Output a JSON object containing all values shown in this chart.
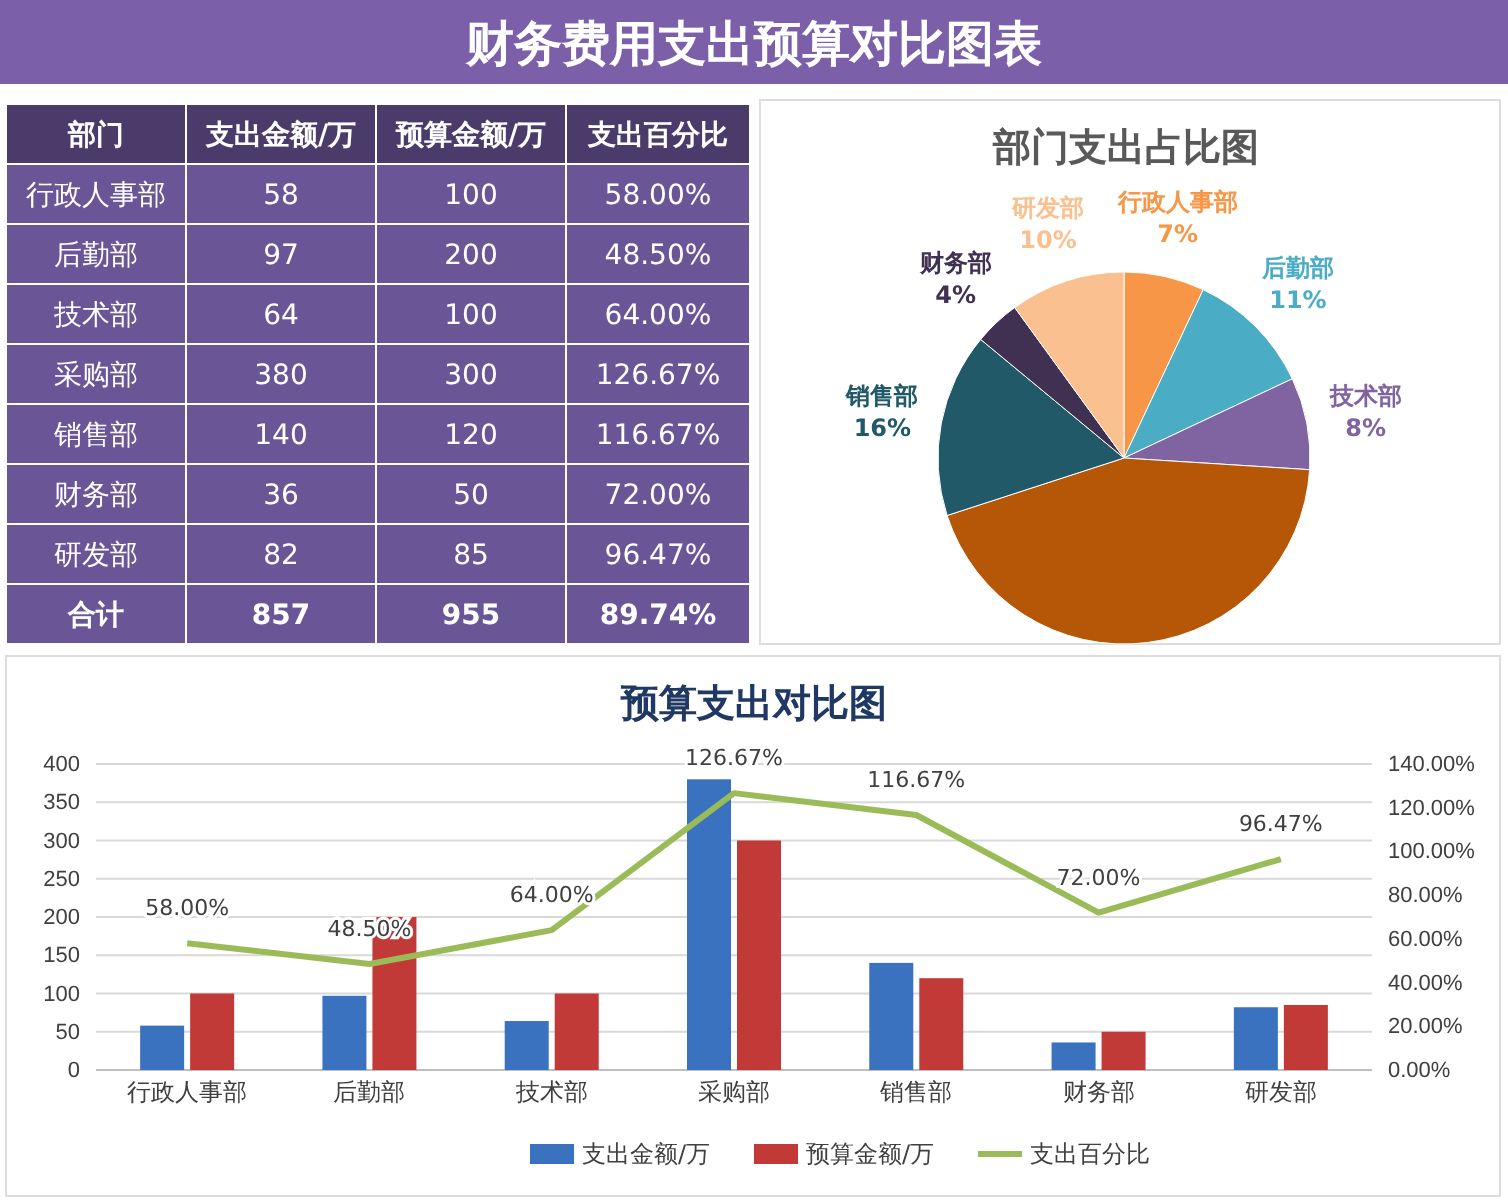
{
  "chart_data": [
    {
      "type": "other",
      "title": "财务费用支出预算对比图表",
      "xlabel": "部门",
      "categories": [
        "行政人事部",
        "后勤部",
        "技术部",
        "采购部",
        "销售部",
        "财务部",
        "研发部",
        "合计"
      ],
      "series": [
        {
          "name": "支出金额/万",
          "color": "#6a5597",
          "values": [
            58,
            97,
            64,
            380,
            140,
            36,
            82,
            857
          ]
        },
        {
          "name": "预算金额/万",
          "color": "#6a5597",
          "values": [
            100,
            200,
            100,
            300,
            120,
            50,
            85,
            955
          ]
        },
        {
          "name": "支出百分比",
          "color": "#6a5597",
          "values": [
            58.0,
            48.5,
            64.0,
            126.67,
            116.67,
            72.0,
            96.47,
            89.74
          ],
          "value_labels": [
            "58.00%",
            "48.50%",
            "64.00%",
            "126.67%",
            "116.67%",
            "72.00%",
            "96.47%",
            "89.74%"
          ]
        }
      ],
      "data_labels": true
    },
    {
      "type": "pie",
      "title": "部门支出占比图",
      "categories": [
        "行政人事部",
        "后勤部",
        "技术部",
        null,
        "销售部",
        "财务部",
        "研发部"
      ],
      "values": [
        7,
        11,
        8,
        44,
        16,
        4,
        10
      ],
      "value_labels": [
        "7%",
        "11%",
        "8%",
        null,
        "16%",
        "4%",
        "10%"
      ],
      "colors": [
        "#f79646",
        "#4bacc6",
        "#8064a2",
        "#b65708",
        "#215968",
        "#403152",
        "#fac08f"
      ]
    },
    {
      "type": "bar",
      "title": "预算支出对比图",
      "categories": [
        "行政人事部",
        "后勤部",
        "技术部",
        "采购部",
        "销售部",
        "财务部",
        "研发部"
      ],
      "series": [
        {
          "name": "支出金额/万",
          "color": "#3a72bf",
          "values": [
            58,
            97,
            64,
            380,
            140,
            36,
            82
          ]
        },
        {
          "name": "预算金额/万",
          "color": "#c23a38",
          "values": [
            100,
            200,
            100,
            300,
            120,
            50,
            85
          ]
        },
        {
          "name": "支出百分比",
          "type": "line",
          "axis": "y2",
          "color": "#9bbb59",
          "values": [
            58.0,
            48.5,
            64.0,
            126.67,
            116.67,
            72.0,
            96.47
          ],
          "value_labels": [
            "58.00%",
            "48.50%",
            "64.00%",
            "126.67%",
            "116.67%",
            "72.00%",
            "96.47%"
          ]
        }
      ],
      "ylim": [
        0,
        400
      ],
      "yticks": [
        0,
        50,
        100,
        150,
        200,
        250,
        300,
        350,
        400
      ],
      "y2lim": [
        0,
        140
      ],
      "y2ticks": [
        {
          "value": 0,
          "label": "0.00%"
        },
        {
          "value": 20,
          "label": "20.00%"
        },
        {
          "value": 40,
          "label": "40.00%"
        },
        {
          "value": 60,
          "label": "60.00%"
        },
        {
          "value": 80,
          "label": "80.00%"
        },
        {
          "value": 100,
          "label": "100.00%"
        },
        {
          "value": 120,
          "label": "120.00%"
        },
        {
          "value": 140,
          "label": "140.00%"
        }
      ],
      "grid": "y",
      "legend": "bottom",
      "marker": "none",
      "line_style": "solid"
    }
  ]
}
